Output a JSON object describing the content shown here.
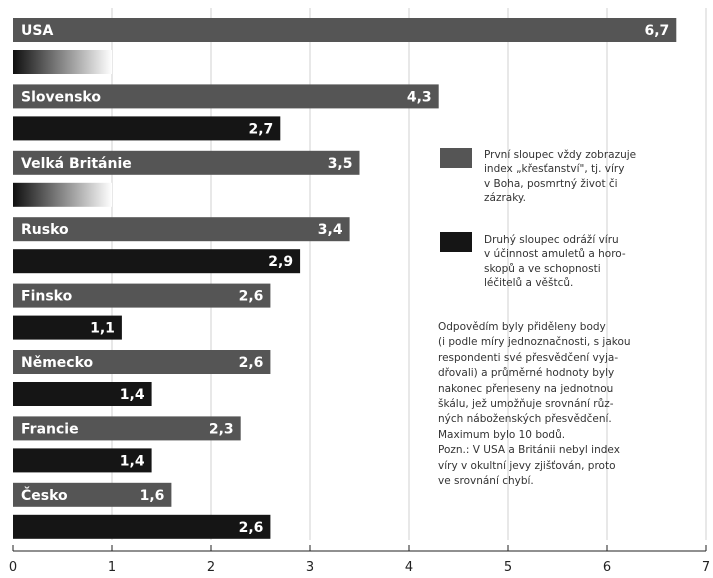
{
  "chart_data": {
    "type": "bar",
    "categories": [
      "USA",
      "Slovensko",
      "Velká Británie",
      "Rusko",
      "Finsko",
      "Německo",
      "Francie",
      "Česko"
    ],
    "series": [
      {
        "values": [
          6.7,
          4.3,
          3.5,
          3.4,
          2.6,
          2.6,
          2.3,
          1.6
        ],
        "value_labels": [
          "6,7",
          "4,3",
          "3,5",
          "3,4",
          "2,6",
          "2,6",
          "2,3",
          "1,6"
        ]
      },
      {
        "values": [
          null,
          2.7,
          null,
          2.9,
          1.1,
          1.4,
          1.4,
          2.6
        ],
        "value_labels": [
          "",
          "2,7",
          "",
          "2,9",
          "1,1",
          "1,4",
          "1,4",
          "2,6"
        ]
      }
    ],
    "x_ticks": [
      "0",
      "1",
      "2",
      "3",
      "4",
      "5",
      "6",
      "7"
    ],
    "xlim": [
      0,
      7
    ],
    "orientation": "horizontal",
    "grid": "vertical",
    "colors": {
      "series1": "#555555",
      "series2": "#151515",
      "missing_gradient_start": "#101010",
      "missing_gradient_end": "#ffffff"
    }
  },
  "legend": {
    "items": [
      {
        "color": "#555555",
        "text": "První sloupec vždy zobrazuje\nindex „křesťanství\", tj. víry\nv Boha, posmrtný život či\nzázraky."
      },
      {
        "color": "#151515",
        "text": "Druhý sloupec odráží víru\nv účinnost amuletů a horo-\nskopů a ve schopnosti\nléčitelů a věštců."
      }
    ]
  },
  "note": "Odpovědím byly přiděleny body\n(i podle míry jednoznačnosti, s jakou\nrespondenti své přesvědčení vyja-\ndřovali) a průměrné hodnoty byly\nnakonec přeneseny na jednotnou\nškálu, jež umožňuje srovnání růz-\nných náboženských přesvědčení.\nMaximum bylo 10 bodů.\nPozn.: V USA a Británii nebyl index\nvíry v okultní jevy zjišťován, proto\nve srovnání chybí."
}
